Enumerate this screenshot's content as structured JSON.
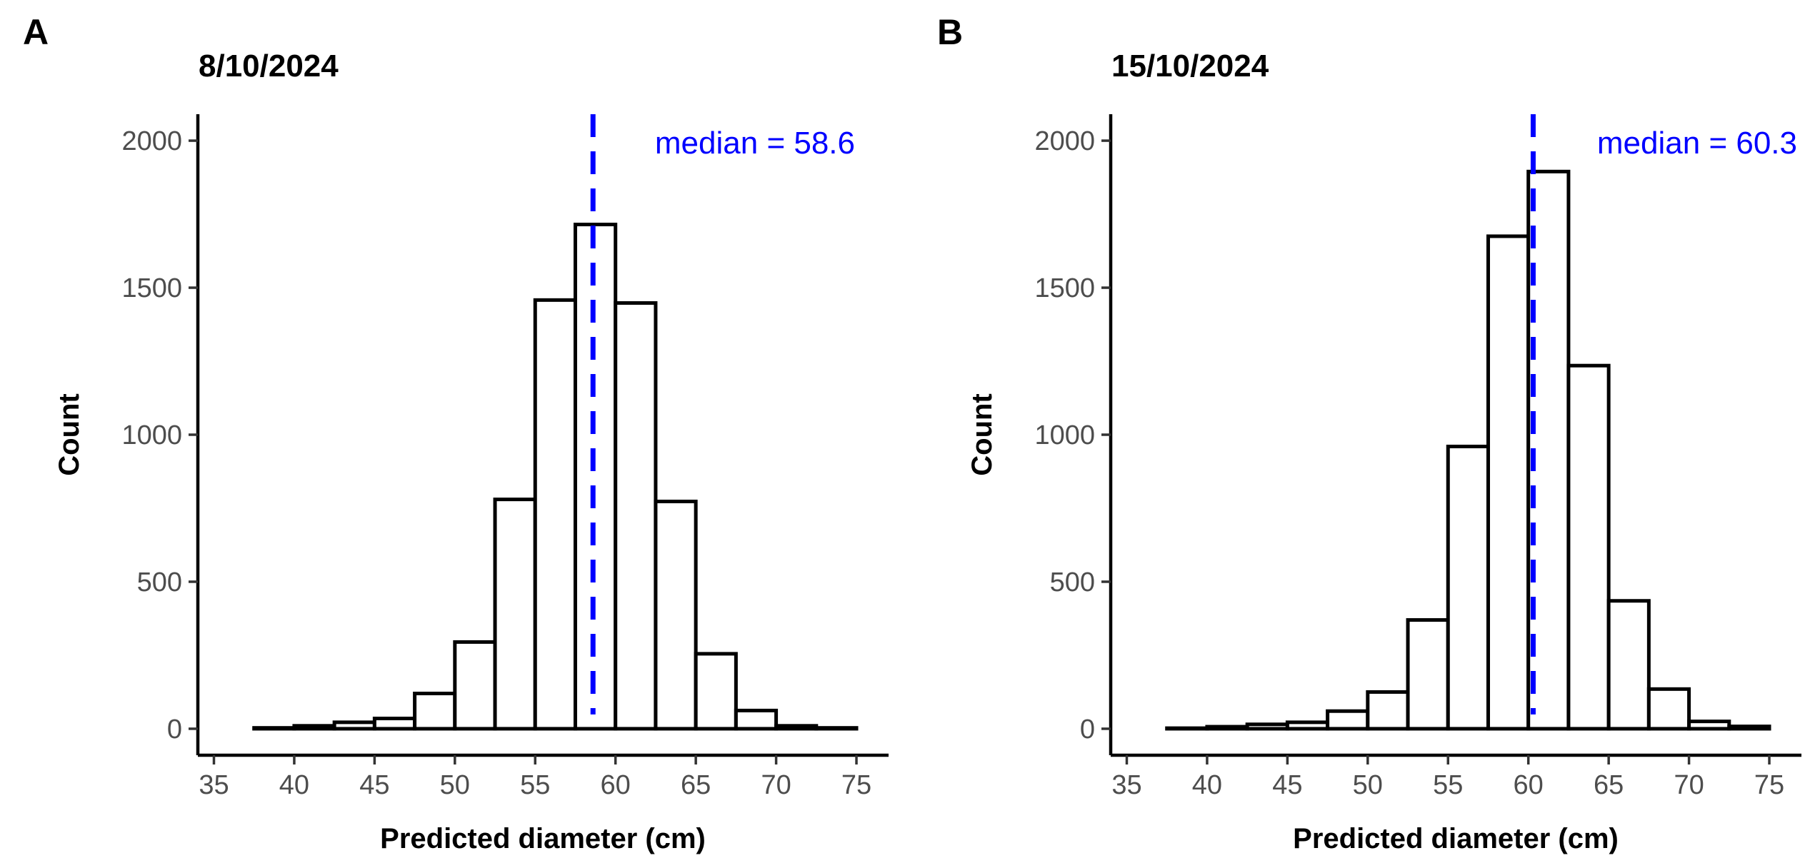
{
  "chart_data": [
    {
      "type": "bar",
      "panel_label": "A",
      "title": "8/10/2024",
      "xlabel": "Predicted diameter (cm)",
      "ylabel": "Count",
      "xlim": [
        34,
        77
      ],
      "ylim": [
        -90,
        2090
      ],
      "x_ticks": [
        35,
        40,
        45,
        50,
        55,
        60,
        65,
        70,
        75
      ],
      "y_ticks": [
        0,
        500,
        1000,
        1500,
        2000
      ],
      "grid": false,
      "bin_width": 2.5,
      "bin_centers": [
        36.25,
        38.75,
        41.25,
        43.75,
        46.25,
        48.75,
        51.25,
        53.75,
        56.25,
        58.75,
        61.25,
        63.75,
        66.25,
        68.75,
        71.25,
        73.75
      ],
      "counts": [
        0,
        3,
        10,
        22,
        35,
        120,
        295,
        780,
        1458,
        1715,
        1448,
        773,
        255,
        62,
        10,
        3
      ],
      "median": 58.6,
      "median_label": "median = 58.6"
    },
    {
      "type": "bar",
      "panel_label": "B",
      "title": "15/10/2024",
      "xlabel": "Predicted diameter (cm)",
      "ylabel": "Count",
      "xlim": [
        34,
        77
      ],
      "ylim": [
        -90,
        2090
      ],
      "x_ticks": [
        35,
        40,
        45,
        50,
        55,
        60,
        65,
        70,
        75
      ],
      "y_ticks": [
        0,
        500,
        1000,
        1500,
        2000
      ],
      "grid": false,
      "bin_width": 2.5,
      "bin_centers": [
        36.25,
        38.75,
        41.25,
        43.75,
        46.25,
        48.75,
        51.25,
        53.75,
        56.25,
        58.75,
        61.25,
        63.75,
        66.25,
        68.75,
        71.25,
        73.75
      ],
      "counts": [
        0,
        2,
        7,
        15,
        22,
        60,
        125,
        370,
        960,
        1675,
        1895,
        1235,
        435,
        135,
        25,
        8
      ],
      "median": 60.3,
      "median_label": "median = 60.3"
    }
  ]
}
